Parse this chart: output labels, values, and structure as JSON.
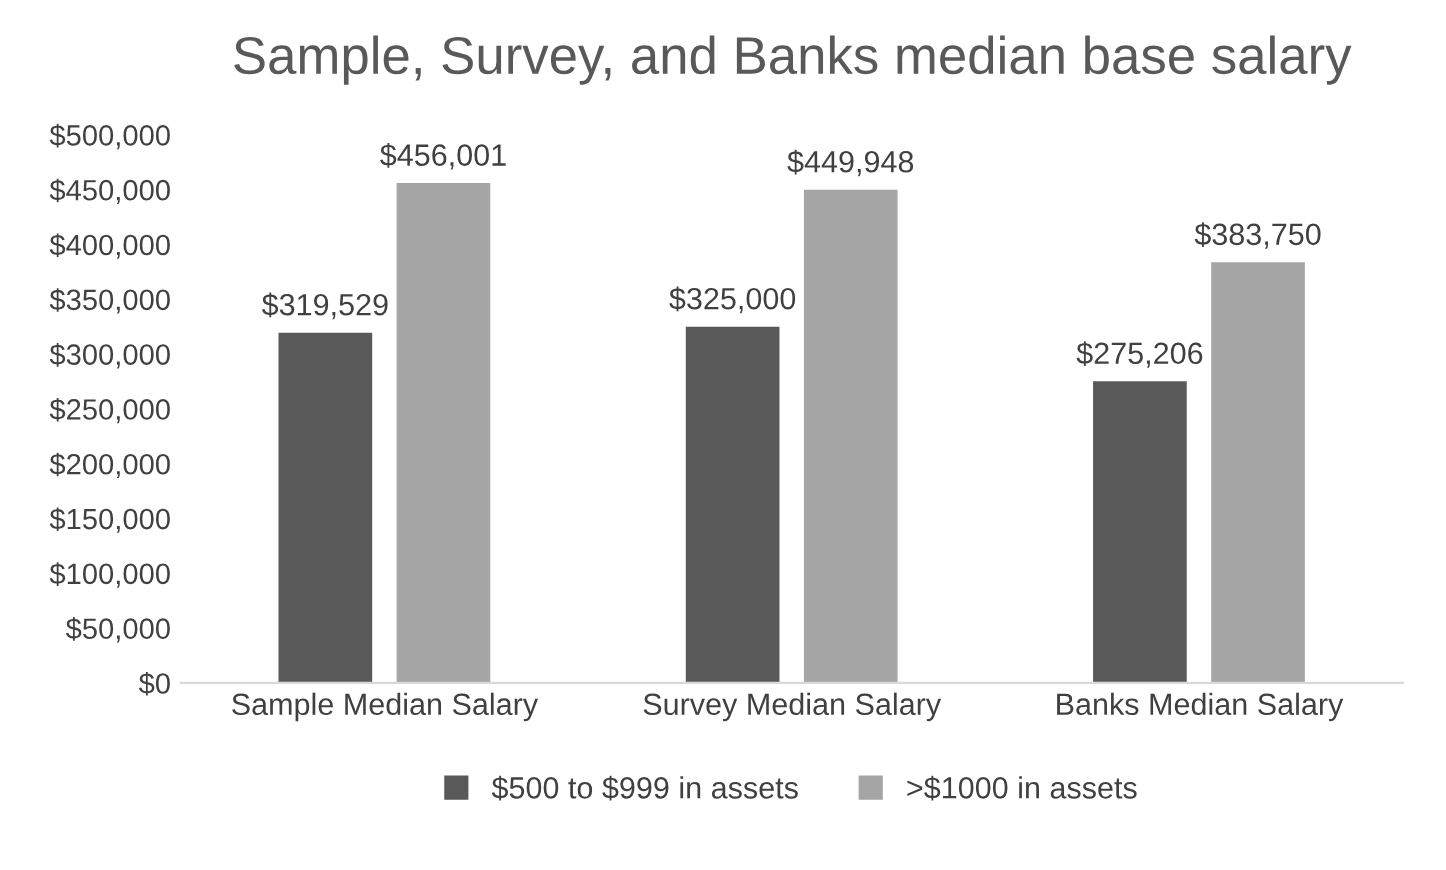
{
  "chart_data": {
    "type": "bar",
    "title": "Sample, Survey, and Banks median base salary",
    "categories": [
      "Sample Median Salary",
      "Survey Median Salary",
      "Banks Median Salary"
    ],
    "series": [
      {
        "name": "$500 to $999 in assets",
        "color": "#595959",
        "values": [
          319529,
          325000,
          275206
        ],
        "value_labels": [
          "$319,529",
          "$325,000",
          "$275,206"
        ]
      },
      {
        "name": ">$1000 in assets",
        "color": "#a5a5a5",
        "values": [
          456001,
          449948,
          383750
        ],
        "value_labels": [
          "$456,001",
          "$449,948",
          "$383,750"
        ]
      }
    ],
    "ylim": [
      0,
      500000
    ],
    "yticks": [
      {
        "value": 0,
        "label": "$0"
      },
      {
        "value": 50000,
        "label": "$50,000"
      },
      {
        "value": 100000,
        "label": "$100,000"
      },
      {
        "value": 150000,
        "label": "$150,000"
      },
      {
        "value": 200000,
        "label": "$200,000"
      },
      {
        "value": 250000,
        "label": "$250,000"
      },
      {
        "value": 300000,
        "label": "$300,000"
      },
      {
        "value": 350000,
        "label": "$350,000"
      },
      {
        "value": 400000,
        "label": "$400,000"
      },
      {
        "value": 450000,
        "label": "$450,000"
      },
      {
        "value": 500000,
        "label": "$500,000"
      }
    ],
    "grid": false,
    "legend": "bottom"
  }
}
